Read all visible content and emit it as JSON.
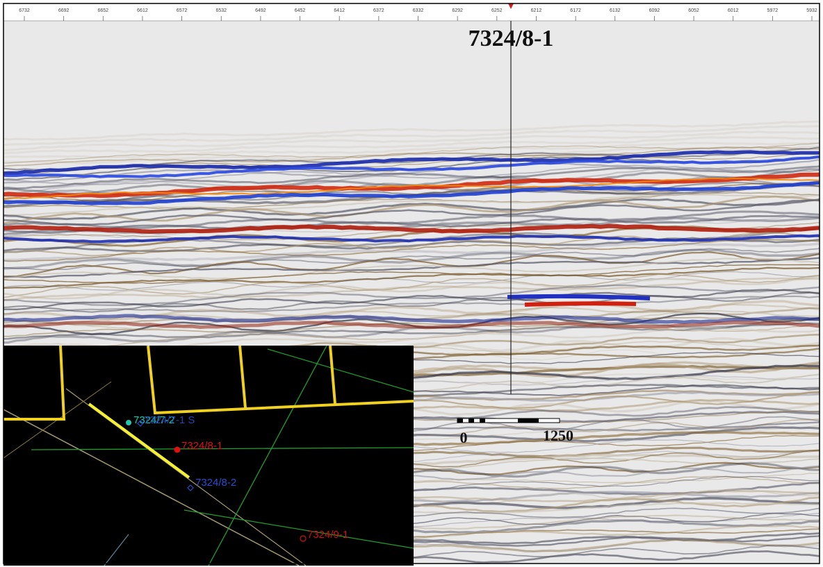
{
  "axis": {
    "ticks": [
      "6732",
      "6692",
      "6652",
      "6612",
      "6572",
      "6532",
      "6492",
      "6452",
      "6412",
      "6372",
      "6332",
      "6292",
      "6252",
      "6212",
      "6172",
      "6132",
      "6092",
      "6052",
      "6012",
      "5972",
      "5932"
    ]
  },
  "well_label": "7324/8-1",
  "scale_bar": {
    "labels": [
      "0",
      "1250"
    ]
  },
  "map": {
    "wells": [
      {
        "label": "7324/7-2",
        "color": "#1fc8b0"
      },
      {
        "label": "7324/7-1 S",
        "color": "#2a4fd0"
      },
      {
        "label": "7324/8-1",
        "color": "#e01010"
      },
      {
        "label": "7324/8-2",
        "color": "#2a4fd0"
      },
      {
        "label": "7324/9-1",
        "color": "#d01010"
      }
    ]
  }
}
